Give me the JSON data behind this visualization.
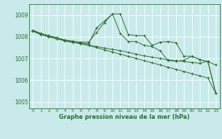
{
  "background_color": "#c8eaea",
  "grid_color": "#ffffff",
  "line_color": "#2d6e2d",
  "title": "Graphe pression niveau de la mer (hPa)",
  "xlim": [
    -0.5,
    23.5
  ],
  "ylim": [
    1004.7,
    1009.5
  ],
  "yticks": [
    1005,
    1006,
    1007,
    1008,
    1009
  ],
  "xtick_labels": [
    "0",
    "1",
    "2",
    "3",
    "4",
    "5",
    "6",
    "7",
    "8",
    "9",
    "10",
    "11",
    "12",
    "13",
    "14",
    "15",
    "16",
    "17",
    "18",
    "19",
    "20",
    "21",
    "22",
    "23"
  ],
  "series": [
    [
      1008.3,
      1008.1,
      1008.0,
      1007.95,
      1007.85,
      1007.75,
      1007.68,
      1007.6,
      1007.5,
      1007.4,
      1007.3,
      1007.2,
      1007.1,
      1007.0,
      1006.9,
      1006.8,
      1006.7,
      1006.6,
      1006.5,
      1006.4,
      1006.3,
      1006.2,
      1006.1,
      1005.4
    ],
    [
      1008.25,
      1008.1,
      1008.0,
      1007.9,
      1007.82,
      1007.75,
      1007.68,
      1007.62,
      1007.55,
      1007.48,
      1007.42,
      1007.36,
      1007.28,
      1007.2,
      1007.12,
      1007.06,
      1007.0,
      1006.94,
      1006.9,
      1006.86,
      1006.82,
      1006.78,
      1006.88,
      1005.4
    ],
    [
      1008.3,
      1008.15,
      1008.05,
      1007.95,
      1007.85,
      1007.8,
      1007.75,
      1007.75,
      1008.2,
      1008.65,
      1009.05,
      1009.05,
      1008.1,
      1008.05,
      1008.05,
      1007.6,
      1007.75,
      1007.78,
      1007.72,
      1007.1,
      1007.1,
      1006.95,
      1006.85,
      1006.7
    ],
    [
      1008.3,
      1008.15,
      1008.05,
      1007.95,
      1007.8,
      1007.75,
      1007.72,
      1007.68,
      1008.4,
      1008.72,
      1009.05,
      1008.15,
      1007.78,
      1007.78,
      1007.6,
      1007.55,
      1007.35,
      1006.9,
      1006.87,
      1006.92,
      1007.1,
      1006.95,
      1006.85,
      1005.4
    ]
  ]
}
